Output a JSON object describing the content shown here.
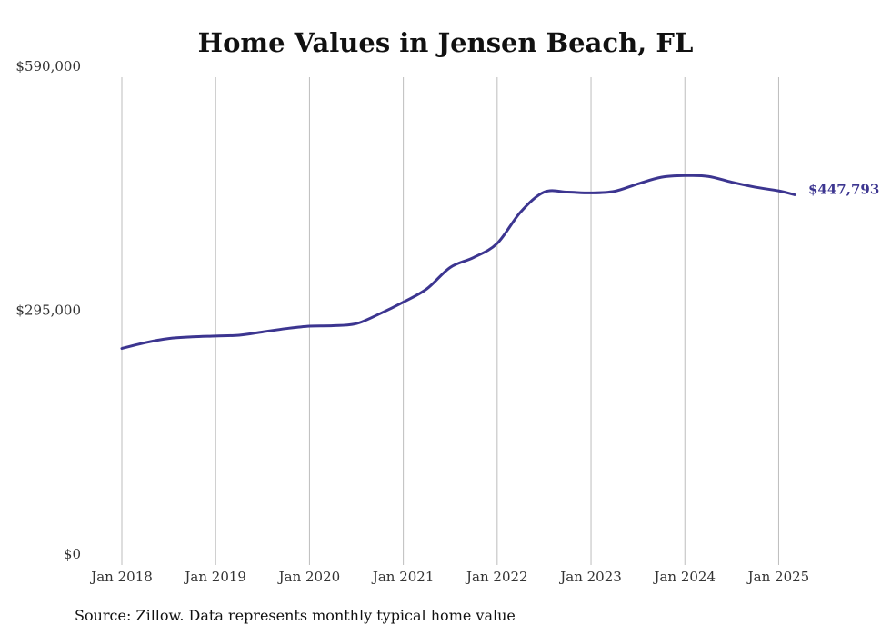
{
  "chart_data": {
    "type": "line",
    "title": "Home Values in Jensen Beach, FL",
    "xlabel": "",
    "ylabel": "",
    "ylim": [
      0,
      590000
    ],
    "y_ticks": [
      {
        "value": 0,
        "label": "$0"
      },
      {
        "value": 295000,
        "label": "$295,000"
      },
      {
        "value": 590000,
        "label": "$590,000"
      }
    ],
    "x_ticks": [
      {
        "value": 2018,
        "label": "Jan 2018"
      },
      {
        "value": 2019,
        "label": "Jan 2019"
      },
      {
        "value": 2020,
        "label": "Jan 2020"
      },
      {
        "value": 2021,
        "label": "Jan 2021"
      },
      {
        "value": 2022,
        "label": "Jan 2022"
      },
      {
        "value": 2023,
        "label": "Jan 2023"
      },
      {
        "value": 2024,
        "label": "Jan 2024"
      },
      {
        "value": 2025,
        "label": "Jan 2025"
      }
    ],
    "xlim": [
      2018,
      2025.17
    ],
    "grid": "vertical",
    "line_color": "#3c3590",
    "series": [
      {
        "x": [
          2018.0,
          2018.25,
          2018.5,
          2018.75,
          2019.0,
          2019.25,
          2019.5,
          2019.75,
          2020.0,
          2020.25,
          2020.5,
          2020.75,
          2021.0,
          2021.25,
          2021.5,
          2021.75,
          2022.0,
          2022.25,
          2022.5,
          2022.75,
          2023.0,
          2023.25,
          2023.5,
          2023.75,
          2024.0,
          2024.25,
          2024.5,
          2024.75,
          2025.0,
          2025.17
        ],
        "values": [
          262000,
          269000,
          274000,
          276000,
          277000,
          278000,
          282000,
          286000,
          289000,
          289500,
          292000,
          304000,
          318000,
          334000,
          360000,
          372000,
          389000,
          427000,
          451000,
          451000,
          450000,
          452000,
          461000,
          469000,
          471000,
          470000,
          463000,
          457000,
          452500,
          447793
        ]
      }
    ],
    "end_label": "$447,793",
    "source": "Source: Zillow. Data represents monthly typical home value"
  }
}
